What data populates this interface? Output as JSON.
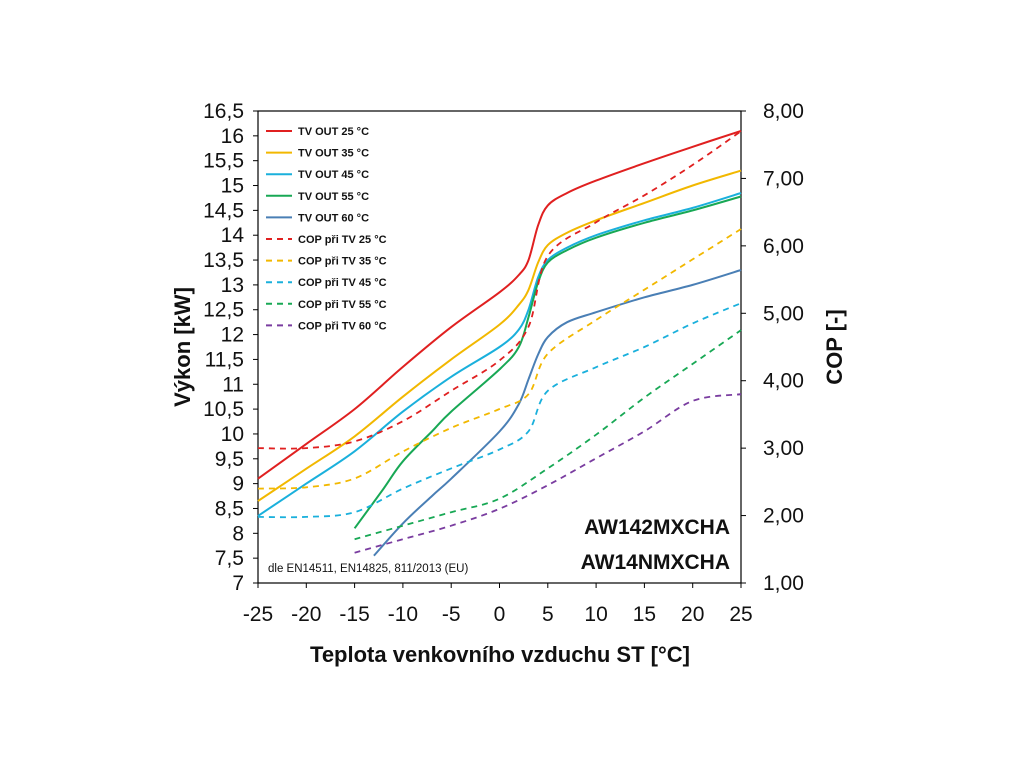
{
  "chart_data": {
    "type": "line",
    "xlabel": "Teplota venkovního vzduchu ST [°C]",
    "ylabel": "Výkon [kW]",
    "y2label": "COP [-]",
    "xlim": [
      -25,
      25
    ],
    "ylim": [
      7,
      16.5
    ],
    "y2lim": [
      1,
      8
    ],
    "x_ticks": [
      "-25",
      "-20",
      "-15",
      "-10",
      "-5",
      "0",
      "5",
      "10",
      "15",
      "20",
      "25"
    ],
    "y_ticks": [
      "7",
      "7,5",
      "8",
      "8,5",
      "9",
      "9,5",
      "10",
      "10,5",
      "11",
      "11,5",
      "12",
      "12,5",
      "13",
      "13,5",
      "14",
      "14,5",
      "15",
      "15,5",
      "16",
      "16,5"
    ],
    "y2_ticks": [
      "1,00",
      "2,00",
      "3,00",
      "4,00",
      "5,00",
      "6,00",
      "7,00",
      "8,00"
    ],
    "legend_position": "top-left",
    "colors": {
      "red": "#e02020",
      "yellow": "#f2b800",
      "cyan": "#1ab0dc",
      "green": "#18a855",
      "steel": "#4a7fb5",
      "purple": "#7a3da0"
    },
    "series": [
      {
        "name": "TV OUT 25 °C",
        "axis": "left",
        "style": "solid",
        "color": "#e02020",
        "x": [
          -25,
          -20,
          -15,
          -10,
          -5,
          0,
          2,
          3,
          4,
          5,
          7,
          10,
          15,
          20,
          25
        ],
        "y": [
          9.1,
          9.8,
          10.5,
          11.35,
          12.15,
          12.85,
          13.2,
          13.5,
          14.2,
          14.6,
          14.85,
          15.1,
          15.45,
          15.78,
          16.1
        ]
      },
      {
        "name": "TV OUT 35 °C",
        "axis": "left",
        "style": "solid",
        "color": "#f2b800",
        "x": [
          -25,
          -20,
          -15,
          -10,
          -5,
          0,
          2,
          3,
          4,
          5,
          7,
          10,
          15,
          20,
          25
        ],
        "y": [
          8.65,
          9.3,
          9.95,
          10.75,
          11.5,
          12.2,
          12.6,
          12.9,
          13.45,
          13.8,
          14.05,
          14.3,
          14.65,
          15.0,
          15.3
        ]
      },
      {
        "name": "TV OUT 45 °C",
        "axis": "left",
        "style": "solid",
        "color": "#1ab0dc",
        "x": [
          -25,
          -20,
          -15,
          -10,
          -5,
          0,
          2,
          3,
          4,
          5,
          7,
          10,
          15,
          20,
          25
        ],
        "y": [
          8.35,
          9.0,
          9.65,
          10.45,
          11.15,
          11.75,
          12.1,
          12.5,
          13.15,
          13.5,
          13.75,
          14.0,
          14.3,
          14.55,
          14.85
        ]
      },
      {
        "name": "TV OUT 55 °C",
        "axis": "left",
        "style": "solid",
        "color": "#18a855",
        "x": [
          -15,
          -12,
          -10,
          -7,
          -5,
          0,
          2,
          3,
          4,
          5,
          7,
          10,
          15,
          20,
          25
        ],
        "y": [
          8.1,
          8.9,
          9.45,
          10.05,
          10.45,
          11.3,
          11.75,
          12.35,
          13.05,
          13.45,
          13.7,
          13.95,
          14.25,
          14.5,
          14.78
        ]
      },
      {
        "name": "TV OUT 60 °C",
        "axis": "left",
        "style": "solid",
        "color": "#4a7fb5",
        "x": [
          -13,
          -10,
          -7,
          -5,
          0,
          2,
          3,
          4,
          5,
          7,
          10,
          15,
          20,
          25
        ],
        "y": [
          7.55,
          8.2,
          8.75,
          9.1,
          10.05,
          10.6,
          11.1,
          11.6,
          11.95,
          12.25,
          12.45,
          12.75,
          13.0,
          13.3
        ]
      },
      {
        "name": "COP při TV 25 °C",
        "axis": "right",
        "style": "dashed",
        "color": "#e02020",
        "x": [
          -25,
          -20,
          -15,
          -10,
          -5,
          0,
          3,
          5,
          10,
          15,
          20,
          25
        ],
        "y": [
          3.0,
          3.0,
          3.1,
          3.4,
          3.85,
          4.3,
          4.8,
          5.85,
          6.35,
          6.75,
          7.2,
          7.7
        ]
      },
      {
        "name": "COP při TV 35 °C",
        "axis": "right",
        "style": "dashed",
        "color": "#f2b800",
        "x": [
          -25,
          -20,
          -15,
          -10,
          -5,
          0,
          3,
          5,
          10,
          15,
          20,
          25
        ],
        "y": [
          2.4,
          2.42,
          2.55,
          2.95,
          3.3,
          3.58,
          3.8,
          4.4,
          4.9,
          5.35,
          5.8,
          6.25
        ]
      },
      {
        "name": "COP při TV 45 °C",
        "axis": "right",
        "style": "dashed",
        "color": "#1ab0dc",
        "x": [
          -25,
          -20,
          -15,
          -10,
          -5,
          0,
          3,
          5,
          10,
          15,
          20,
          25
        ],
        "y": [
          1.98,
          1.98,
          2.05,
          2.4,
          2.7,
          2.98,
          3.25,
          3.85,
          4.2,
          4.5,
          4.85,
          5.15
        ]
      },
      {
        "name": "COP při TV 55 °C",
        "axis": "right",
        "style": "dashed",
        "color": "#18a855",
        "x": [
          -15,
          -10,
          -5,
          0,
          5,
          10,
          15,
          20,
          25
        ],
        "y": [
          1.65,
          1.85,
          2.05,
          2.25,
          2.7,
          3.2,
          3.75,
          4.25,
          4.75
        ]
      },
      {
        "name": "COP při TV 60 °C",
        "axis": "right",
        "style": "dashed",
        "color": "#7a3da0",
        "x": [
          -15,
          -10,
          -5,
          0,
          5,
          10,
          15,
          20,
          25
        ],
        "y": [
          1.45,
          1.65,
          1.85,
          2.1,
          2.45,
          2.85,
          3.25,
          3.7,
          3.8
        ]
      }
    ],
    "annotations": {
      "model_1": "AW142MXCHA",
      "model_2": "AW14NMXCHA",
      "footnote": "dle EN14511, EN14825, 811/2013 (EU)"
    }
  }
}
